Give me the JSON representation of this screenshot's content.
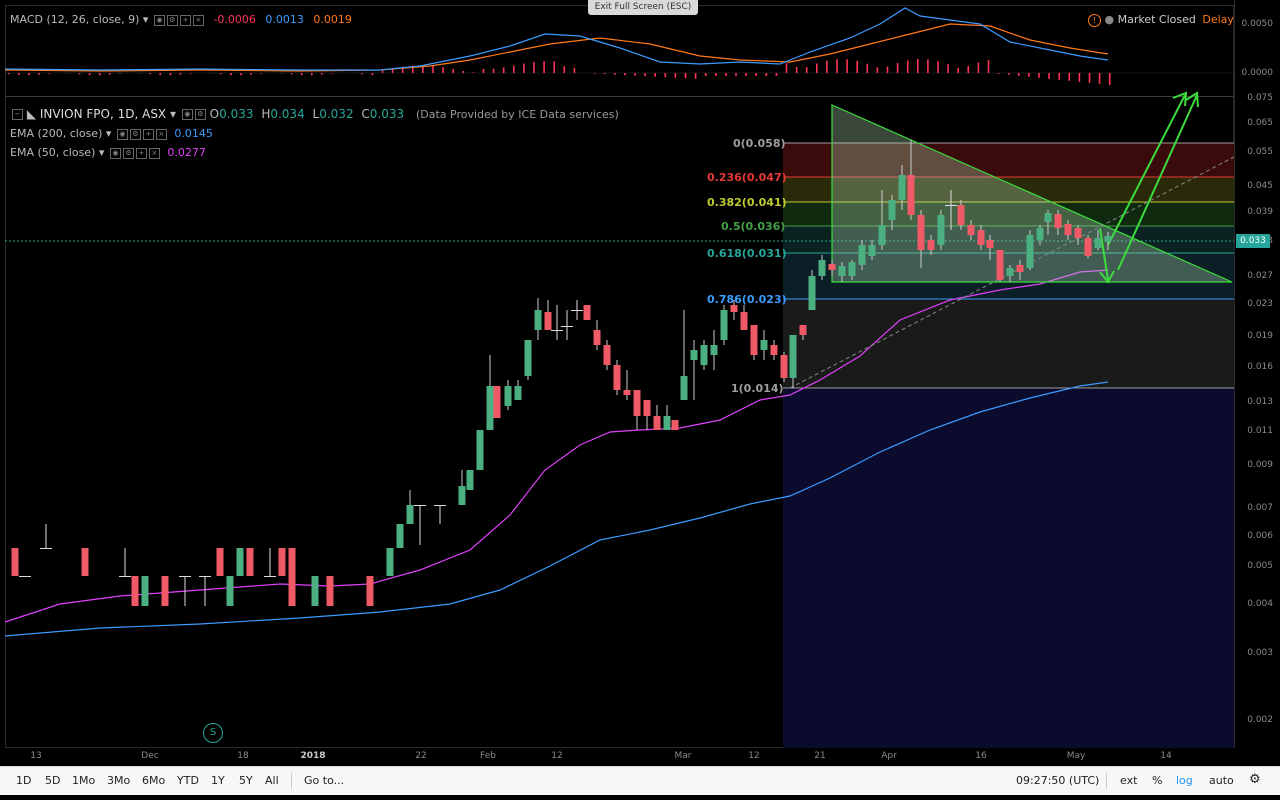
{
  "top": {
    "exit_fullscreen": "Exit Full Screen (ESC)",
    "market_status": "Market Closed",
    "delayed": "Delayed"
  },
  "macd": {
    "label": "MACD (12, 26, close, 9)",
    "hist_value": "-0.0006",
    "macd_value": "0.0013",
    "signal_value": "0.0019",
    "colors": {
      "hist": "#ff3355",
      "macd": "#3b9bff",
      "signal": "#ff7a1a"
    },
    "axis": [
      "0.0050",
      "0.0000"
    ]
  },
  "main": {
    "symbol": "INVION FPO, 1D, ASX",
    "ohlc": {
      "o_label": "O",
      "o": "0.033",
      "h_label": "H",
      "h": "0.034",
      "l_label": "L",
      "l": "0.032",
      "c_label": "C",
      "c": "0.033"
    },
    "provider": "(Data Provided by ICE Data services)",
    "ema200": {
      "label": "EMA (200, close)",
      "value": "0.0145",
      "color": "#3b9bff"
    },
    "ema50": {
      "label": "EMA (50, close)",
      "value": "0.0277",
      "color": "#e040fb"
    },
    "last_price": "0.033"
  },
  "fib": [
    {
      "label": "0(0.058)",
      "color": "#9e9e9e"
    },
    {
      "label": "0.236(0.047)",
      "color": "#e53935"
    },
    {
      "label": "0.382(0.041)",
      "color": "#c0ca33"
    },
    {
      "label": "0.5(0.036)",
      "color": "#43a047"
    },
    {
      "label": "0.618(0.031)",
      "color": "#26a69a"
    },
    {
      "label": "0.786(0.023)",
      "color": "#3b9bff"
    },
    {
      "label": "1(0.014)",
      "color": "#9e9e9e"
    }
  ],
  "price_axis": [
    "0.075",
    "0.065",
    "0.055",
    "0.045",
    "0.039",
    "0.033",
    "0.027",
    "0.023",
    "0.019",
    "0.016",
    "0.013",
    "0.011",
    "0.009",
    "0.007",
    "0.006",
    "0.005",
    "0.004",
    "0.003",
    "0.002"
  ],
  "time_axis": [
    "13",
    "Dec",
    "18",
    "2018",
    "22",
    "Feb",
    "12",
    "Mar",
    "12",
    "21",
    "Apr",
    "16",
    "May",
    "14"
  ],
  "session_marker": "S",
  "bottom": {
    "ranges": [
      "1D",
      "5D",
      "1Mo",
      "3Mo",
      "6Mo",
      "YTD",
      "1Y",
      "5Y",
      "All"
    ],
    "goto": "Go to...",
    "time": "09:27:50 (UTC)",
    "ext": "ext",
    "percent": "%",
    "log": "log",
    "auto": "auto"
  }
}
